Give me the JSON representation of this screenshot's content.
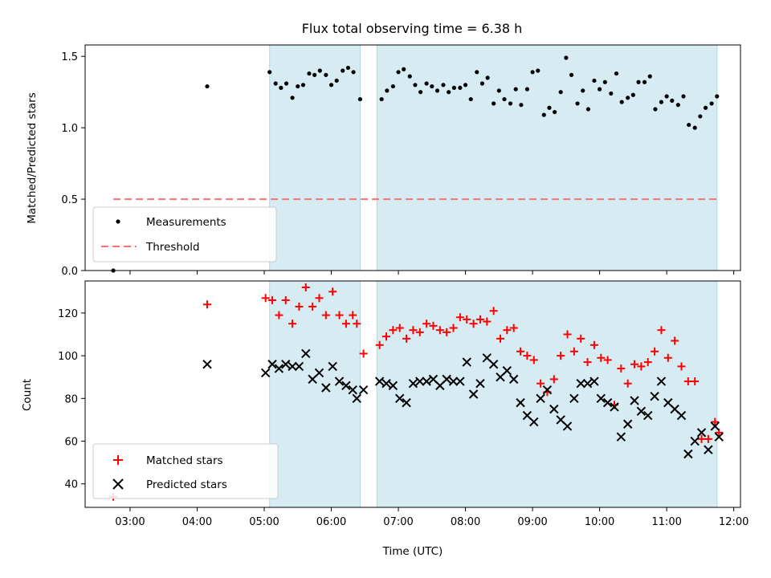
{
  "chart_data": {
    "title": "Flux total observing time = 6.38 h",
    "xlabel": "Time (UTC)",
    "x_ticks": [
      "03:00",
      "04:00",
      "05:00",
      "06:00",
      "07:00",
      "08:00",
      "09:00",
      "10:00",
      "11:00",
      "12:00"
    ],
    "xlim_hours": [
      2.33,
      12.1
    ],
    "shaded_intervals_hours": [
      [
        5.08,
        6.43
      ],
      [
        6.68,
        11.75
      ]
    ],
    "shade_color": "#add8e6",
    "panels": [
      {
        "type": "scatter",
        "ylabel": "Matched/Predicted stars",
        "ylim": [
          0,
          1.58
        ],
        "y_ticks": [
          "0.0",
          "0.5",
          "1.0",
          "1.5"
        ],
        "threshold": {
          "value": 0.5,
          "x_range": [
            2.75,
            11.75
          ],
          "color": "#ff7070",
          "style": "dashed"
        },
        "legend": [
          "Measurements",
          "Threshold"
        ],
        "legend_position": "lower-left",
        "series": [
          {
            "name": "Measurements",
            "marker": "dot",
            "color": "#000000",
            "x": [
              2.75,
              4.15,
              5.08,
              5.17,
              5.25,
              5.33,
              5.42,
              5.5,
              5.58,
              5.67,
              5.75,
              5.83,
              5.92,
              6.0,
              6.08,
              6.17,
              6.25,
              6.33,
              6.43,
              6.75,
              6.83,
              6.92,
              7.0,
              7.08,
              7.17,
              7.25,
              7.33,
              7.42,
              7.5,
              7.58,
              7.67,
              7.75,
              7.83,
              7.92,
              8.0,
              8.08,
              8.17,
              8.25,
              8.33,
              8.42,
              8.5,
              8.58,
              8.67,
              8.75,
              8.83,
              8.92,
              9.0,
              9.08,
              9.17,
              9.25,
              9.33,
              9.42,
              9.5,
              9.58,
              9.67,
              9.75,
              9.83,
              9.92,
              10.0,
              10.08,
              10.17,
              10.25,
              10.33,
              10.42,
              10.5,
              10.58,
              10.67,
              10.75,
              10.83,
              10.92,
              11.0,
              11.08,
              11.17,
              11.25,
              11.33,
              11.42,
              11.5,
              11.58,
              11.67,
              11.75
            ],
            "y": [
              0.0,
              1.29,
              1.39,
              1.31,
              1.28,
              1.31,
              1.21,
              1.29,
              1.3,
              1.38,
              1.37,
              1.4,
              1.37,
              1.3,
              1.33,
              1.4,
              1.42,
              1.39,
              1.2,
              1.2,
              1.26,
              1.29,
              1.39,
              1.41,
              1.36,
              1.3,
              1.25,
              1.31,
              1.29,
              1.26,
              1.3,
              1.25,
              1.28,
              1.28,
              1.3,
              1.2,
              1.39,
              1.31,
              1.35,
              1.17,
              1.26,
              1.2,
              1.17,
              1.27,
              1.16,
              1.27,
              1.39,
              1.4,
              1.09,
              1.14,
              1.11,
              1.25,
              1.49,
              1.37,
              1.17,
              1.26,
              1.13,
              1.33,
              1.27,
              1.32,
              1.24,
              1.38,
              1.18,
              1.21,
              1.23,
              1.32,
              1.32,
              1.36,
              1.13,
              1.18,
              1.22,
              1.19,
              1.16,
              1.22,
              1.02,
              1.0,
              1.08,
              1.14,
              1.17,
              1.22
            ]
          }
        ]
      },
      {
        "type": "scatter",
        "ylabel": "Count",
        "ylim": [
          29,
          135
        ],
        "y_ticks": [
          "40",
          "60",
          "80",
          "100",
          "120"
        ],
        "legend": [
          "Matched stars",
          "Predicted stars"
        ],
        "legend_position": "lower-left",
        "series": [
          {
            "name": "Matched stars",
            "marker": "plus",
            "color": "#ff0000",
            "x": [
              2.75,
              4.15,
              5.02,
              5.12,
              5.22,
              5.32,
              5.42,
              5.52,
              5.62,
              5.72,
              5.82,
              5.92,
              6.02,
              6.12,
              6.22,
              6.32,
              6.38,
              6.48,
              6.72,
              6.82,
              6.92,
              7.02,
              7.12,
              7.22,
              7.32,
              7.42,
              7.52,
              7.62,
              7.72,
              7.82,
              7.92,
              8.02,
              8.12,
              8.22,
              8.32,
              8.42,
              8.52,
              8.62,
              8.72,
              8.82,
              8.92,
              9.02,
              9.12,
              9.22,
              9.32,
              9.42,
              9.52,
              9.62,
              9.72,
              9.82,
              9.92,
              10.02,
              10.12,
              10.22,
              10.32,
              10.42,
              10.52,
              10.62,
              10.72,
              10.82,
              10.92,
              11.02,
              11.12,
              11.22,
              11.32,
              11.42,
              11.52,
              11.62,
              11.72,
              11.78
            ],
            "y": [
              34,
              124,
              127,
              126,
              119,
              126,
              115,
              123,
              132,
              123,
              127,
              119,
              130,
              119,
              115,
              119,
              115,
              101,
              105,
              109,
              112,
              113,
              108,
              112,
              111,
              115,
              114,
              112,
              111,
              113,
              118,
              117,
              115,
              117,
              116,
              121,
              108,
              112,
              113,
              102,
              100,
              98,
              87,
              83,
              89,
              100,
              110,
              102,
              108,
              97,
              105,
              99,
              98,
              77,
              94,
              87,
              96,
              95,
              97,
              102,
              112,
              99,
              107,
              95,
              88,
              88,
              61,
              61,
              69,
              64
            ]
          },
          {
            "name": "Predicted stars",
            "marker": "x",
            "color": "#000000",
            "x": [
              4.15,
              5.02,
              5.12,
              5.22,
              5.32,
              5.42,
              5.52,
              5.62,
              5.72,
              5.82,
              5.92,
              6.02,
              6.12,
              6.22,
              6.32,
              6.38,
              6.48,
              6.72,
              6.82,
              6.92,
              7.02,
              7.12,
              7.22,
              7.32,
              7.42,
              7.52,
              7.62,
              7.72,
              7.82,
              7.92,
              8.02,
              8.12,
              8.22,
              8.32,
              8.42,
              8.52,
              8.62,
              8.72,
              8.82,
              8.92,
              9.02,
              9.12,
              9.22,
              9.32,
              9.42,
              9.52,
              9.62,
              9.72,
              9.82,
              9.92,
              10.02,
              10.12,
              10.22,
              10.32,
              10.42,
              10.52,
              10.62,
              10.72,
              10.82,
              10.92,
              11.02,
              11.12,
              11.22,
              11.32,
              11.42,
              11.52,
              11.62,
              11.72,
              11.78
            ],
            "y": [
              96,
              92,
              96,
              94,
              96,
              95,
              95,
              101,
              89,
              92,
              85,
              95,
              88,
              86,
              84,
              80,
              84,
              88,
              87,
              86,
              80,
              78,
              87,
              88,
              88,
              89,
              86,
              89,
              88,
              88,
              97,
              82,
              87,
              99,
              96,
              90,
              93,
              89,
              78,
              72,
              69,
              80,
              84,
              75,
              70,
              67,
              80,
              87,
              87,
              88,
              80,
              78,
              76,
              62,
              68,
              79,
              74,
              72,
              81,
              88,
              78,
              75,
              72,
              54,
              60,
              64,
              56,
              67,
              62
            ]
          }
        ]
      }
    ]
  }
}
